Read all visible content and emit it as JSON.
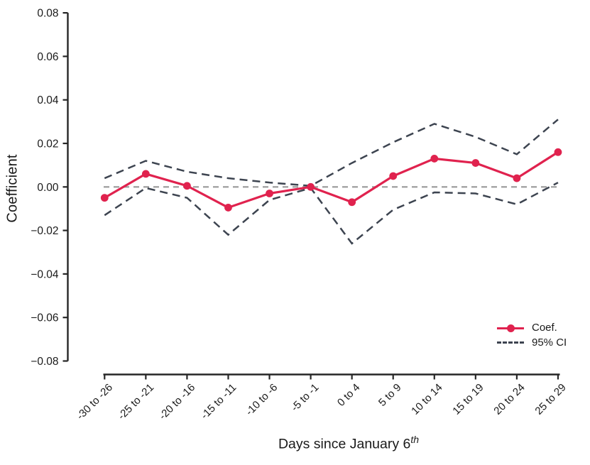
{
  "chart_data": {
    "type": "line",
    "title": "",
    "xlabel": "Days since January 6",
    "xlabel_superscript": "th",
    "ylabel": "Coefficient",
    "categories": [
      "-30 to -26",
      "-25 to -21",
      "-20 to -16",
      "-15 to -11",
      "-10 to -6",
      "-5 to -1",
      "0 to 4",
      "5 to 9",
      "10 to 14",
      "15 to 19",
      "20 to 24",
      "25 to 29"
    ],
    "series": [
      {
        "name": "Coef.",
        "style": "solid_markers",
        "values": [
          -0.005,
          0.006,
          0.0005,
          -0.0095,
          -0.003,
          0,
          -0.007,
          0.005,
          0.013,
          0.011,
          0.004,
          0.016
        ]
      },
      {
        "name": "95% CI upper",
        "style": "dashed",
        "values": [
          0.004,
          0.012,
          0.007,
          0.004,
          0.002,
          0.0005,
          0.011,
          0.0205,
          0.029,
          0.023,
          0.015,
          0.031
        ]
      },
      {
        "name": "95% CI lower",
        "style": "dashed",
        "values": [
          -0.013,
          -0.0005,
          -0.005,
          -0.022,
          -0.006,
          -0.0005,
          -0.026,
          -0.0105,
          -0.0025,
          -0.003,
          -0.008,
          0.002
        ]
      }
    ],
    "ylim": [
      -0.08,
      0.08
    ],
    "y_tick_values": [
      0.08,
      0.06,
      0.04,
      0.02,
      0.0,
      -0.02,
      -0.04,
      -0.06,
      -0.08
    ],
    "y_tick_labels": [
      "0.08",
      "0.06",
      "0.04",
      "0.02",
      "0.00",
      "−0.02",
      "−0.04",
      "−0.06",
      "−0.08"
    ],
    "reference_line": {
      "y": 0,
      "style": "dashed"
    },
    "grid": "off",
    "colors": {
      "coef_line": "#e0224e",
      "ci_line": "#3d4450",
      "zero_line": "#999999",
      "axis": "#262626"
    },
    "legend": {
      "position": "bottom-right",
      "entries": [
        {
          "label": "Coef."
        },
        {
          "label": "95% CI"
        }
      ]
    }
  }
}
